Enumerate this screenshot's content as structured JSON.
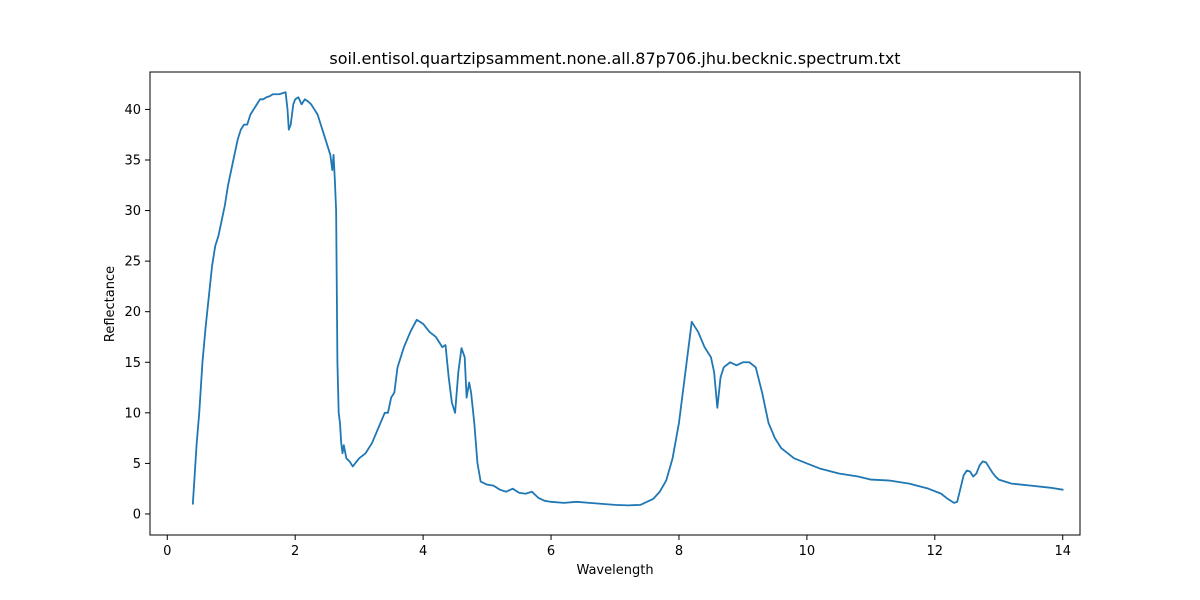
{
  "chart_data": {
    "type": "line",
    "title": "soil.entisol.quartzipsamment.none.all.87p706.jhu.becknic.spectrum.txt",
    "xlabel": "Wavelength",
    "ylabel": "Reflectance",
    "xlim": [
      -0.27,
      14.27
    ],
    "ylim": [
      -2.08,
      43.7
    ],
    "xticks": [
      0,
      2,
      4,
      6,
      8,
      10,
      12,
      14
    ],
    "yticks": [
      0,
      5,
      10,
      15,
      20,
      25,
      30,
      35,
      40
    ],
    "grid": false,
    "line_color": "#1f77b4",
    "series": [
      {
        "x": [
          0.4,
          0.43,
          0.46,
          0.5,
          0.55,
          0.6,
          0.65,
          0.7,
          0.75,
          0.8,
          0.85,
          0.9,
          0.95,
          1.0,
          1.05,
          1.1,
          1.15,
          1.2,
          1.25,
          1.3,
          1.35,
          1.4,
          1.45,
          1.5,
          1.55,
          1.6,
          1.65,
          1.7,
          1.75,
          1.8,
          1.85,
          1.88,
          1.9,
          1.93,
          1.97,
          2.0,
          2.05,
          2.1,
          2.15,
          2.2,
          2.25,
          2.3,
          2.35,
          2.4,
          2.45,
          2.5,
          2.55,
          2.58,
          2.6,
          2.62,
          2.64,
          2.66,
          2.68,
          2.7,
          2.72,
          2.74,
          2.76,
          2.8,
          2.85,
          2.9,
          3.0,
          3.1,
          3.2,
          3.3,
          3.4,
          3.45,
          3.5,
          3.55,
          3.6,
          3.7,
          3.8,
          3.9,
          4.0,
          4.1,
          4.2,
          4.3,
          4.35,
          4.4,
          4.45,
          4.5,
          4.55,
          4.6,
          4.65,
          4.68,
          4.72,
          4.75,
          4.8,
          4.85,
          4.9,
          5.0,
          5.1,
          5.2,
          5.3,
          5.4,
          5.5,
          5.6,
          5.7,
          5.8,
          5.9,
          6.0,
          6.2,
          6.4,
          6.6,
          6.8,
          7.0,
          7.2,
          7.4,
          7.6,
          7.7,
          7.8,
          7.9,
          8.0,
          8.1,
          8.2,
          8.3,
          8.4,
          8.5,
          8.55,
          8.6,
          8.65,
          8.7,
          8.8,
          8.9,
          9.0,
          9.1,
          9.2,
          9.3,
          9.4,
          9.5,
          9.6,
          9.8,
          10.0,
          10.2,
          10.5,
          10.8,
          11.0,
          11.3,
          11.6,
          11.9,
          12.1,
          12.2,
          12.3,
          12.35,
          12.4,
          12.45,
          12.5,
          12.55,
          12.6,
          12.65,
          12.7,
          12.75,
          12.8,
          12.85,
          12.9,
          12.95,
          13.0,
          13.2,
          13.5,
          13.8,
          14.0
        ],
        "values": [
          1.0,
          4.0,
          7.0,
          10.0,
          15.0,
          18.5,
          21.5,
          24.5,
          26.5,
          27.5,
          29.0,
          30.5,
          32.5,
          34.0,
          35.5,
          37.0,
          38.0,
          38.5,
          38.5,
          39.5,
          40.0,
          40.5,
          41.0,
          41.0,
          41.2,
          41.3,
          41.5,
          41.5,
          41.5,
          41.6,
          41.7,
          40.0,
          38.0,
          38.5,
          40.5,
          41.0,
          41.2,
          40.5,
          41.0,
          40.8,
          40.5,
          40.0,
          39.5,
          38.5,
          37.5,
          36.5,
          35.5,
          34.0,
          35.5,
          33.0,
          30.0,
          15.0,
          10.0,
          9.0,
          7.0,
          6.0,
          6.8,
          5.5,
          5.2,
          4.7,
          5.5,
          6.0,
          7.0,
          8.5,
          10.0,
          10.0,
          11.5,
          12.0,
          14.5,
          16.5,
          18.0,
          19.2,
          18.8,
          18.0,
          17.5,
          16.5,
          16.7,
          13.5,
          11.0,
          10.0,
          14.0,
          16.4,
          15.5,
          11.5,
          13.0,
          12.0,
          9.0,
          5.0,
          3.2,
          2.9,
          2.8,
          2.4,
          2.2,
          2.5,
          2.1,
          2.0,
          2.2,
          1.6,
          1.3,
          1.2,
          1.1,
          1.2,
          1.1,
          1.0,
          0.9,
          0.85,
          0.9,
          1.5,
          2.2,
          3.3,
          5.5,
          9.0,
          14.0,
          19.0,
          18.0,
          16.5,
          15.5,
          14.0,
          10.5,
          13.5,
          14.5,
          15.0,
          14.7,
          15.0,
          15.0,
          14.5,
          12.0,
          9.0,
          7.5,
          6.5,
          5.5,
          5.0,
          4.5,
          4.0,
          3.7,
          3.4,
          3.3,
          3.0,
          2.5,
          2.0,
          1.5,
          1.1,
          1.2,
          2.5,
          3.8,
          4.3,
          4.2,
          3.7,
          4.0,
          4.8,
          5.2,
          5.1,
          4.6,
          4.1,
          3.7,
          3.4,
          3.0,
          2.8,
          2.6,
          2.4
        ]
      }
    ]
  }
}
